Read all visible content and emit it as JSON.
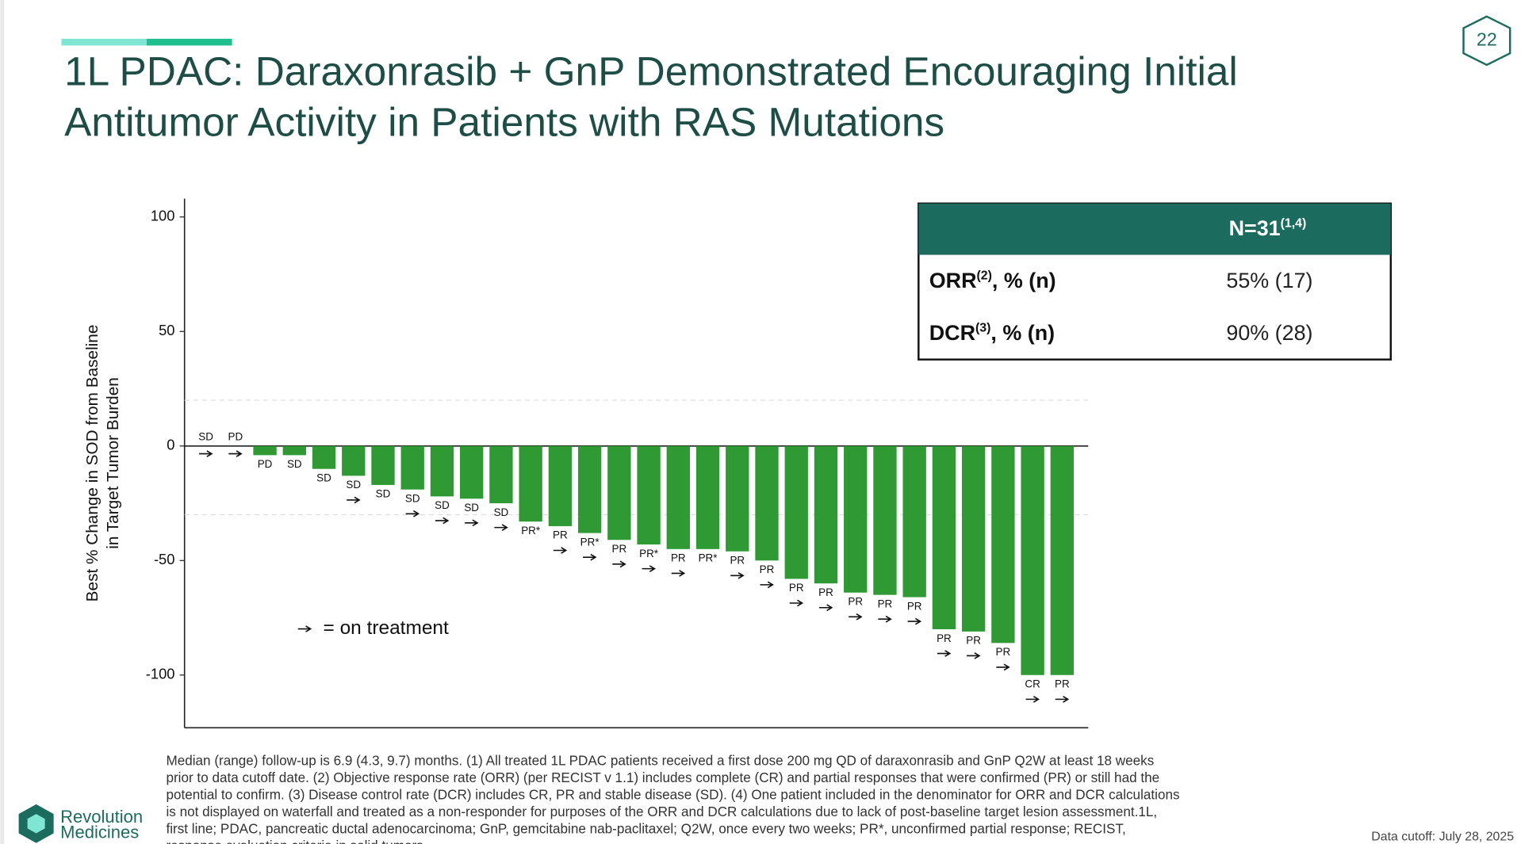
{
  "page_number": "22",
  "title_lines": [
    "1L PDAC: Daraxonrasib + GnP Demonstrated Encouraging Initial",
    "Antitumor Activity in Patients with RAS Mutations"
  ],
  "chart_data": {
    "type": "bar",
    "y_label_lines": [
      "Best % Change in SOD from Baseline",
      "in Target Tumor Burden"
    ],
    "categories": [
      "SD",
      "PD",
      "PD",
      "SD",
      "SD",
      "SD",
      "SD",
      "SD",
      "SD",
      "SD",
      "SD",
      "PR*",
      "PR",
      "PR*",
      "PR",
      "PR*",
      "PR",
      "PR*",
      "PR",
      "PR",
      "PR",
      "PR",
      "PR",
      "PR",
      "PR",
      "PR",
      "PR",
      "PR",
      "CR",
      "PR"
    ],
    "values": [
      0,
      0,
      -4,
      -4,
      -10,
      -13,
      -17,
      -19,
      -22,
      -23,
      -25,
      -33,
      -35,
      -38,
      -41,
      -43,
      -45,
      -45,
      -46,
      -50,
      -58,
      -60,
      -64,
      -65,
      -66,
      -80,
      -81,
      -86,
      -100,
      -100
    ],
    "on_treatment": [
      true,
      true,
      false,
      false,
      false,
      true,
      false,
      true,
      true,
      true,
      true,
      false,
      true,
      true,
      true,
      true,
      true,
      false,
      true,
      true,
      true,
      true,
      true,
      true,
      true,
      true,
      true,
      true,
      true,
      true
    ],
    "color": "#2f9a34",
    "ylim": [
      -123,
      108
    ],
    "yticks": [
      -100,
      -50,
      0,
      50,
      100
    ],
    "reference_lines": [
      20,
      -30
    ],
    "legend": "= on treatment"
  },
  "table": {
    "header": "N=31",
    "header_sup": "(1,4)",
    "rows": [
      {
        "label": "ORR",
        "sup": "(2)",
        "suffix": ", % (n)",
        "value": "55% (17)"
      },
      {
        "label": "DCR",
        "sup": "(3)",
        "suffix": ", % (n)",
        "value": "90% (28)"
      }
    ]
  },
  "footnote_lines": [
    "Median (range) follow-up is 6.9 (4.3, 9.7) months. (1) All treated 1L PDAC patients received a first dose 200 mg QD of daraxonrasib and GnP Q2W at least 18 weeks",
    "prior to data cutoff date. (2) Objective response rate (ORR) (per RECIST v 1.1) includes complete (CR) and partial responses that were confirmed (PR) or still had the",
    "potential to confirm. (3) Disease control rate (DCR) includes CR, PR and stable disease (SD). (4) One patient included in the denominator for ORR and DCR calculations",
    "is not displayed on waterfall and treated as a non-responder for purposes of the ORR and DCR calculations due to lack of post-baseline target lesion assessment.1L,",
    "first line; PDAC, pancreatic ductal adenocarcinoma; GnP, gemcitabine nab-paclitaxel; Q2W, once every two weeks; PR*, unconfirmed partial response; RECIST,",
    "response evaluation criteria in solid tumors"
  ],
  "logo_lines": [
    "Revolution",
    "Medicines"
  ],
  "data_cutoff": "Data cutoff: July 28, 2025"
}
